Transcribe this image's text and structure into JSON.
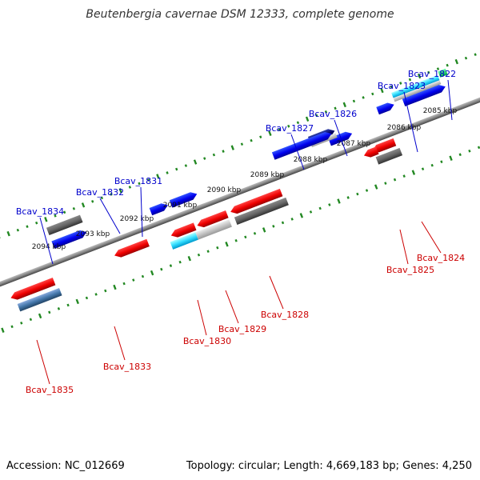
{
  "title": "Beutenbergia cavernae DSM 12333, complete genome",
  "footer": {
    "accession": "Accession: NC_012669",
    "summary": "Topology: circular; Length: 4,669,183 bp; Genes: 4,250"
  },
  "colors": {
    "forward_label": "#0000cc",
    "reverse_label": "#cc0000",
    "tick": "#228822",
    "backbone": "#888888"
  },
  "scale_labels": [
    "2085 kbp",
    "2086 kbp",
    "2087 kbp",
    "2088 kbp",
    "2089 kbp",
    "2090 kbp",
    "2091 kbp",
    "2092 kbp",
    "2093 kbp",
    "2094 kbp"
  ],
  "gene_labels": {
    "forward": [
      "Bcav_1822",
      "Bcav_1823",
      "Bcav_1826",
      "Bcav_1827",
      "Bcav_1831",
      "Bcav_1832",
      "Bcav_1834"
    ],
    "reverse": [
      "Bcav_1824",
      "Bcav_1825",
      "Bcav_1828",
      "Bcav_1829",
      "Bcav_1830",
      "Bcav_1833",
      "Bcav_1835"
    ]
  }
}
